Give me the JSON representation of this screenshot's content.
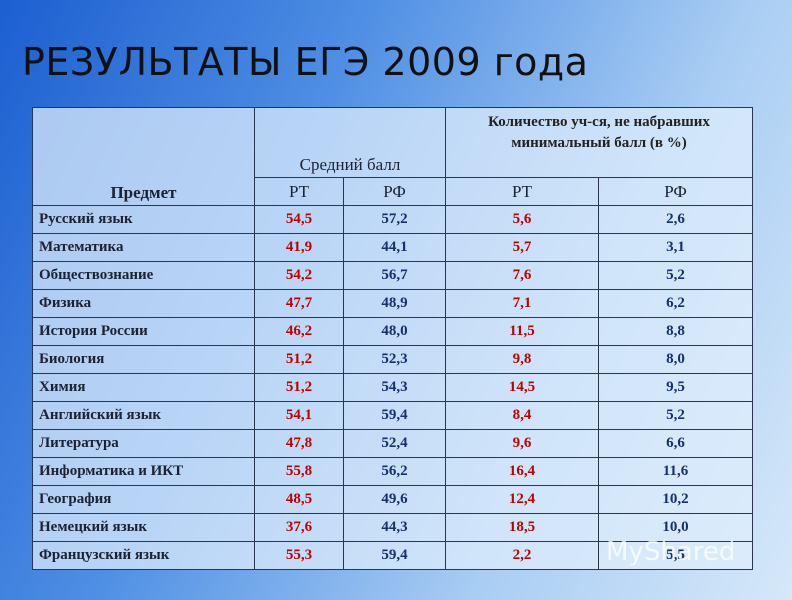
{
  "title": "РЕЗУЛЬТАТЫ ЕГЭ 2009 года",
  "table": {
    "header": {
      "subject": "Предмет",
      "avg_score": "Средний балл",
      "below_min": "Количество уч-ся, не набравших минимальный балл (в %)",
      "sub": [
        "РТ",
        "РФ",
        "РТ",
        "РФ"
      ]
    },
    "rows": [
      [
        "Русский язык",
        "54,5",
        "57,2",
        "5,6",
        "2,6"
      ],
      [
        "Математика",
        "41,9",
        "44,1",
        "5,7",
        "3,1"
      ],
      [
        "Обществознание",
        "54,2",
        "56,7",
        "7,6",
        "5,2"
      ],
      [
        "Физика",
        "47,7",
        "48,9",
        "7,1",
        "6,2"
      ],
      [
        "История России",
        "46,2",
        "48,0",
        "11,5",
        "8,8"
      ],
      [
        "Биология",
        "51,2",
        "52,3",
        "9,8",
        "8,0"
      ],
      [
        "Химия",
        "51,2",
        "54,3",
        "14,5",
        "9,5"
      ],
      [
        "Английский язык",
        "54,1",
        "59,4",
        "8,4",
        "5,2"
      ],
      [
        "Литература",
        "47,8",
        "52,4",
        "9,6",
        "6,6"
      ],
      [
        "Информатика и ИКТ",
        "55,8",
        "56,2",
        "16,4",
        "11,6"
      ],
      [
        "География",
        "48,5",
        "49,6",
        "12,4",
        "10,2"
      ],
      [
        "Немецкий язык",
        "37,6",
        "44,3",
        "18,5",
        "10,0"
      ],
      [
        "Французский язык",
        "55,3",
        "59,4",
        "2,2",
        "5,5"
      ]
    ]
  },
  "watermark": "MyShared"
}
